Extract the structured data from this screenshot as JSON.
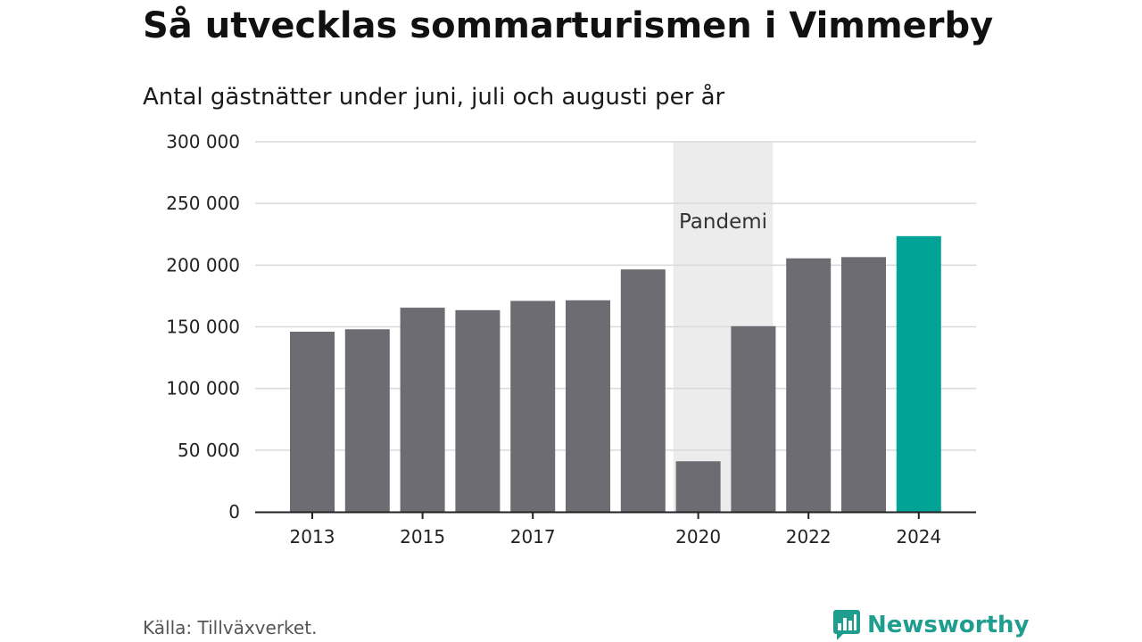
{
  "header": {
    "title": "Så utvecklas sommarturismen i Vimmerby",
    "subtitle": "Antal gästnätter under juni, juli och augusti per år"
  },
  "footer": {
    "source": "Källa: Tillväxverket.",
    "brand": "Newsworthy"
  },
  "colors": {
    "bar": "#6d6c72",
    "highlight": "#00a396",
    "band": "#ececec",
    "grid": "#d9d9d9",
    "axis": "#222222",
    "brand": "#1f9e8f"
  },
  "chart_data": {
    "type": "bar",
    "title": "Så utvecklas sommarturismen i Vimmerby",
    "subtitle": "Antal gästnätter under juni, juli och augusti per år",
    "categories": [
      "2013",
      "2014",
      "2015",
      "2016",
      "2017",
      "2018",
      "2019",
      "2020",
      "2021",
      "2022",
      "2023",
      "2024"
    ],
    "values": [
      146000,
      148000,
      165500,
      163500,
      171000,
      171500,
      196500,
      41000,
      150500,
      205500,
      206500,
      223500
    ],
    "highlight_category": "2024",
    "xtick_labels": [
      "2013",
      "2015",
      "2017",
      "2020",
      "2022",
      "2024"
    ],
    "yticks": [
      0,
      50000,
      100000,
      150000,
      200000,
      250000,
      300000
    ],
    "ytick_labels": [
      "0",
      "50 000",
      "100 000",
      "150 000",
      "200 000",
      "250 000",
      "300 000"
    ],
    "ylim": [
      0,
      300000
    ],
    "xlabel": "",
    "ylabel": "",
    "grid": true,
    "legend": "none",
    "annotations": [
      {
        "type": "band",
        "category": "2020",
        "span": [
          2020,
          2021
        ],
        "label": "Pandemi"
      }
    ]
  }
}
